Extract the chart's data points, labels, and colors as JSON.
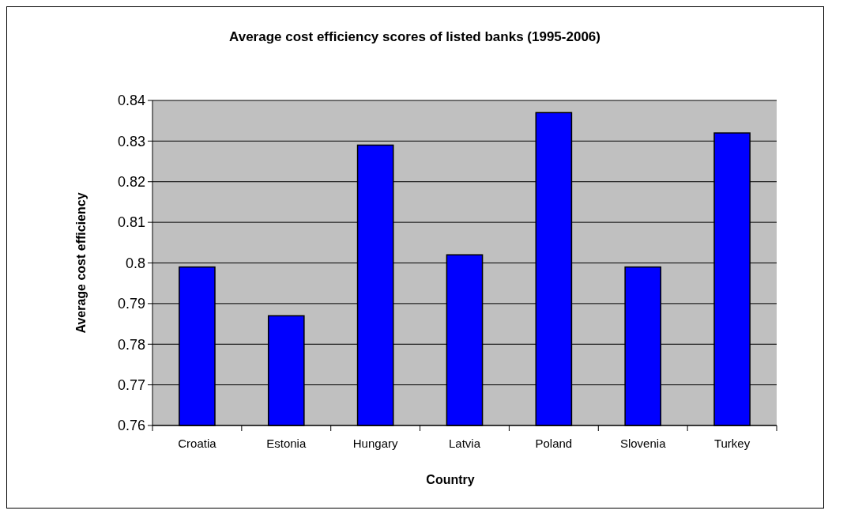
{
  "chart_data": {
    "type": "bar",
    "title": "Average cost efficiency scores of listed banks (1995-2006)",
    "xlabel": "Country",
    "ylabel": "Average cost efficiency",
    "categories": [
      "Croatia",
      "Estonia",
      "Hungary",
      "Latvia",
      "Poland",
      "Slovenia",
      "Turkey"
    ],
    "values": [
      0.799,
      0.787,
      0.829,
      0.802,
      0.837,
      0.799,
      0.832
    ],
    "color": "#0000ff",
    "ylim": [
      0.76,
      0.84
    ],
    "yticks": [
      0.76,
      0.77,
      0.78,
      0.79,
      0.8,
      0.81,
      0.82,
      0.83,
      0.84
    ],
    "grid": "y"
  }
}
